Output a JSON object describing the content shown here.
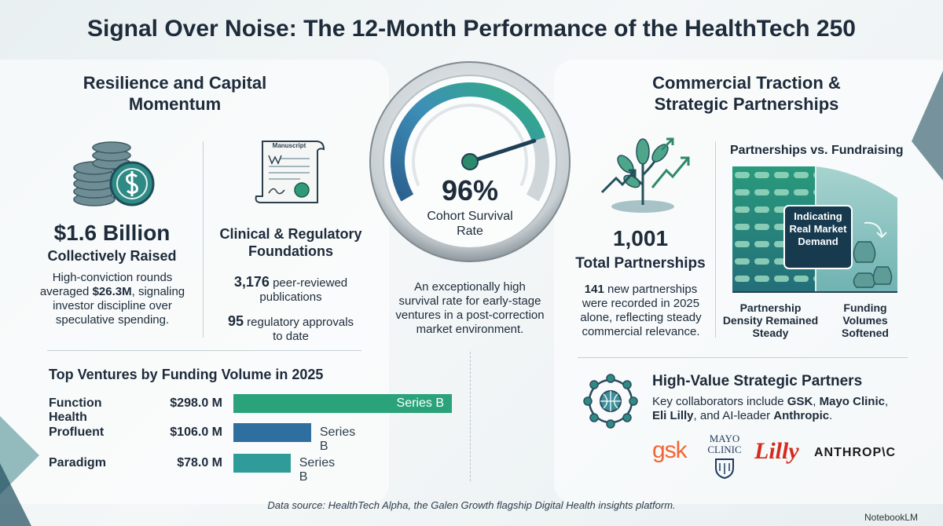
{
  "header": {
    "title": "Signal Over Noise: The 12-Month Performance of the HealthTech 250"
  },
  "capital": {
    "heading": "Resilience and Capital Momentum",
    "amount": "$1.6 Billion",
    "label": "Collectively Raised",
    "description": [
      {
        "text": "High-conviction rounds averaged ",
        "bold": false
      },
      {
        "text": "$26.3M",
        "bold": true
      },
      {
        "text": ", signaling investor discipline over speculative spending.",
        "bold": false
      }
    ]
  },
  "clinical": {
    "icon_label": "Manuscript",
    "heading": "Clinical & Regulatory Foundations",
    "stats": [
      {
        "value": "3,176",
        "label": "peer-reviewed publications"
      },
      {
        "value": "95",
        "label": "regulatory approvals to date"
      }
    ]
  },
  "gauge": {
    "value": 96,
    "label": "96%",
    "caption": "Cohort Survival Rate",
    "description": "An exceptionally high survival rate for early-stage ventures in a post-correction market environment."
  },
  "ventures": {
    "title": "Top Ventures by Funding Volume in 2025",
    "names": [
      "Function Health",
      "Profluent",
      "Paradigm"
    ],
    "values": [
      298.0,
      106.0,
      78.0
    ],
    "value_labels": [
      "$298.0 M",
      "$106.0 M",
      "$78.0 M"
    ],
    "stages": [
      "Series B",
      "Series B",
      "Series B"
    ],
    "colors": [
      "#2aa37a",
      "#2f6f9f",
      "#2f9c9a"
    ]
  },
  "traction": {
    "heading": "Commercial Traction & Strategic Partnerships",
    "total": "1,001",
    "total_label": "Total Partnerships",
    "description": [
      {
        "text": "141",
        "bold": true
      },
      {
        "text": " new partnerships were recorded in 2025 alone, reflecting steady commercial relevance.",
        "bold": false
      }
    ]
  },
  "comparison": {
    "title": "Partnerships vs. Fundraising",
    "callout": "Indicating Real Market Demand",
    "left_label": "Partnership Density Remained Steady",
    "right_label": "Funding Volumes Softened"
  },
  "partners": {
    "heading": "High-Value Strategic Partners",
    "description": [
      {
        "text": "Key collaborators include ",
        "bold": false
      },
      {
        "text": "GSK",
        "bold": true
      },
      {
        "text": ", ",
        "bold": false
      },
      {
        "text": "Mayo Clinic",
        "bold": true
      },
      {
        "text": ", ",
        "bold": false
      },
      {
        "text": "Eli Lilly",
        "bold": true
      },
      {
        "text": ", and AI-leader ",
        "bold": false
      },
      {
        "text": "Anthropic",
        "bold": true
      },
      {
        "text": ".",
        "bold": false
      }
    ],
    "logos": [
      "gsk",
      "MAYO CLINIC",
      "Lilly",
      "ANTHROP\\C"
    ]
  },
  "footer": {
    "source": "Data source: HealthTech Alpha, the Galen Growth flagship Digital Health insights platform.",
    "brand": "NotebookLM"
  }
}
